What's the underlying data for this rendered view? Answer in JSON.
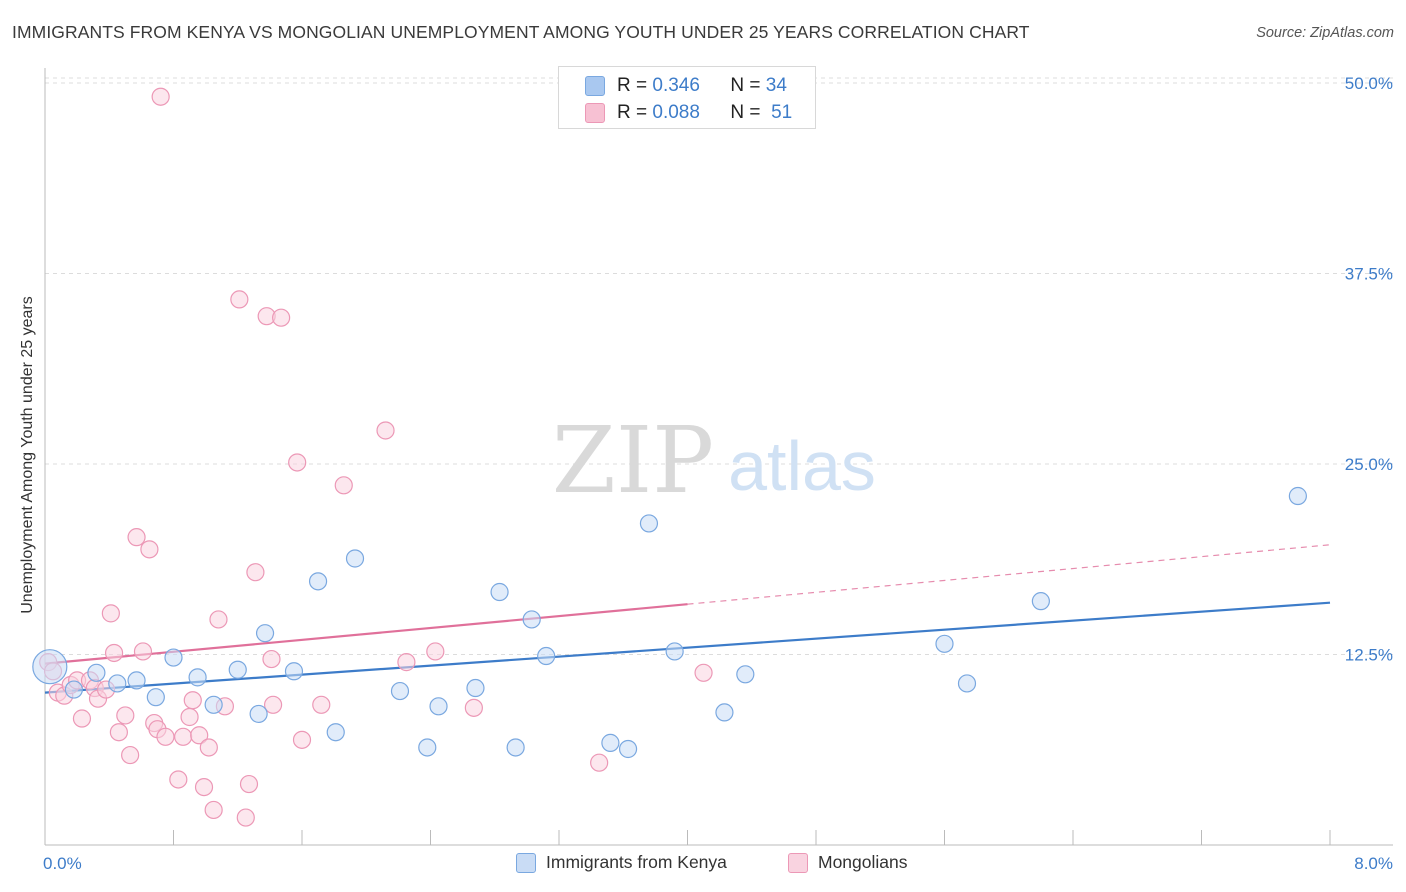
{
  "title": "IMMIGRANTS FROM KENYA VS MONGOLIAN UNEMPLOYMENT AMONG YOUTH UNDER 25 YEARS CORRELATION CHART",
  "source": "Source: ZipAtlas.com",
  "watermark": {
    "zip": "ZIP",
    "atlas": "atlas"
  },
  "legend_top": {
    "rows": [
      {
        "r_label": "R =",
        "r_value": "0.346",
        "n_label": "N =",
        "n_value": "34",
        "color": "#a9c8f0",
        "border": "#7aa8e0"
      },
      {
        "r_label": "R =",
        "r_value": "0.088",
        "n_label": "N =",
        "n_value": "51",
        "color": "#f7c1d3",
        "border": "#ec98b6"
      }
    ]
  },
  "legend_bottom": [
    {
      "label": "Immigrants from Kenya",
      "color": "#c9dcf5",
      "border": "#7aa8e0"
    },
    {
      "label": "Mongolians",
      "color": "#f9d3e0",
      "border": "#ec98b6"
    }
  ],
  "chart_data": {
    "type": "scatter",
    "title": "IMMIGRANTS FROM KENYA VS MONGOLIAN UNEMPLOYMENT AMONG YOUTH UNDER 25 YEARS CORRELATION CHART",
    "xlabel": "",
    "ylabel": "Unemployment Among Youth under 25 years",
    "xlim": [
      0,
      8
    ],
    "ylim": [
      0,
      50
    ],
    "x_tick_labels": [
      "0.0%",
      "8.0%"
    ],
    "y_ticks": [
      12.5,
      25.0,
      37.5,
      50.0
    ],
    "y_tick_labels": [
      "12.5%",
      "25.0%",
      "37.5%",
      "50.0%"
    ],
    "grid": true,
    "legend_position": "top-center",
    "series": [
      {
        "name": "Immigrants from Kenya",
        "color": "#7aa8e0",
        "fill": "#c9dcf5",
        "line_color": "#3d7cc9",
        "R": 0.346,
        "N": 34,
        "trend": {
          "x0": 0,
          "y0": 10.0,
          "x1": 8,
          "y1": 15.9,
          "dashed_from": null
        },
        "points": [
          [
            0.03,
            11.7,
            "big"
          ],
          [
            0.18,
            10.2
          ],
          [
            0.32,
            11.3
          ],
          [
            0.45,
            10.6
          ],
          [
            0.57,
            10.8
          ],
          [
            0.69,
            9.7
          ],
          [
            0.8,
            12.3
          ],
          [
            0.95,
            11.0
          ],
          [
            1.05,
            9.2
          ],
          [
            1.2,
            11.5
          ],
          [
            1.33,
            8.6
          ],
          [
            1.37,
            13.9
          ],
          [
            1.55,
            11.4
          ],
          [
            1.7,
            17.3
          ],
          [
            1.81,
            7.4
          ],
          [
            1.93,
            18.8
          ],
          [
            2.21,
            10.1
          ],
          [
            2.38,
            6.4
          ],
          [
            2.45,
            9.1
          ],
          [
            2.68,
            10.3
          ],
          [
            2.83,
            16.6
          ],
          [
            2.93,
            6.4
          ],
          [
            3.03,
            14.8
          ],
          [
            3.12,
            12.4
          ],
          [
            3.52,
            6.7
          ],
          [
            3.63,
            6.3
          ],
          [
            3.76,
            21.1
          ],
          [
            3.92,
            12.7
          ],
          [
            4.23,
            8.7
          ],
          [
            4.36,
            11.2
          ],
          [
            5.6,
            13.2
          ],
          [
            5.74,
            10.6
          ],
          [
            6.2,
            16.0
          ],
          [
            7.8,
            22.9
          ]
        ]
      },
      {
        "name": "Mongolians",
        "color": "#ec98b6",
        "fill": "#f9d3e0",
        "line_color": "#e0709a",
        "R": 0.088,
        "N": 51,
        "trend": {
          "x0": 0,
          "y0": 11.9,
          "x1": 8,
          "y1": 19.7,
          "dashed_from": 4.0
        },
        "points": [
          [
            0.02,
            12.0
          ],
          [
            0.05,
            11.4
          ],
          [
            0.08,
            10.0
          ],
          [
            0.12,
            9.8
          ],
          [
            0.16,
            10.5
          ],
          [
            0.2,
            10.8
          ],
          [
            0.23,
            8.3
          ],
          [
            0.28,
            10.8
          ],
          [
            0.31,
            10.3
          ],
          [
            0.33,
            9.6
          ],
          [
            0.38,
            10.2
          ],
          [
            0.41,
            15.2
          ],
          [
            0.43,
            12.6
          ],
          [
            0.46,
            7.4
          ],
          [
            0.5,
            8.5
          ],
          [
            0.53,
            5.9
          ],
          [
            0.57,
            20.2
          ],
          [
            0.61,
            12.7
          ],
          [
            0.65,
            19.4
          ],
          [
            0.68,
            8.0
          ],
          [
            0.7,
            7.6
          ],
          [
            0.75,
            7.1
          ],
          [
            0.83,
            4.3
          ],
          [
            0.86,
            7.1
          ],
          [
            0.9,
            8.4
          ],
          [
            0.92,
            9.5
          ],
          [
            0.96,
            7.2
          ],
          [
            0.99,
            3.8
          ],
          [
            1.02,
            6.4
          ],
          [
            1.05,
            2.3
          ],
          [
            1.08,
            14.8
          ],
          [
            1.12,
            9.1
          ],
          [
            1.21,
            35.8
          ],
          [
            1.25,
            1.8
          ],
          [
            1.27,
            4.0
          ],
          [
            1.31,
            17.9
          ],
          [
            1.38,
            34.7
          ],
          [
            1.41,
            12.2
          ],
          [
            1.42,
            9.2
          ],
          [
            1.47,
            34.6
          ],
          [
            1.57,
            25.1
          ],
          [
            1.6,
            6.9
          ],
          [
            1.72,
            9.2
          ],
          [
            1.86,
            23.6
          ],
          [
            2.12,
            27.2
          ],
          [
            2.25,
            12.0
          ],
          [
            2.43,
            12.7
          ],
          [
            2.67,
            9.0
          ],
          [
            3.45,
            5.4
          ],
          [
            4.1,
            11.3
          ],
          [
            0.72,
            49.1
          ]
        ]
      }
    ]
  }
}
